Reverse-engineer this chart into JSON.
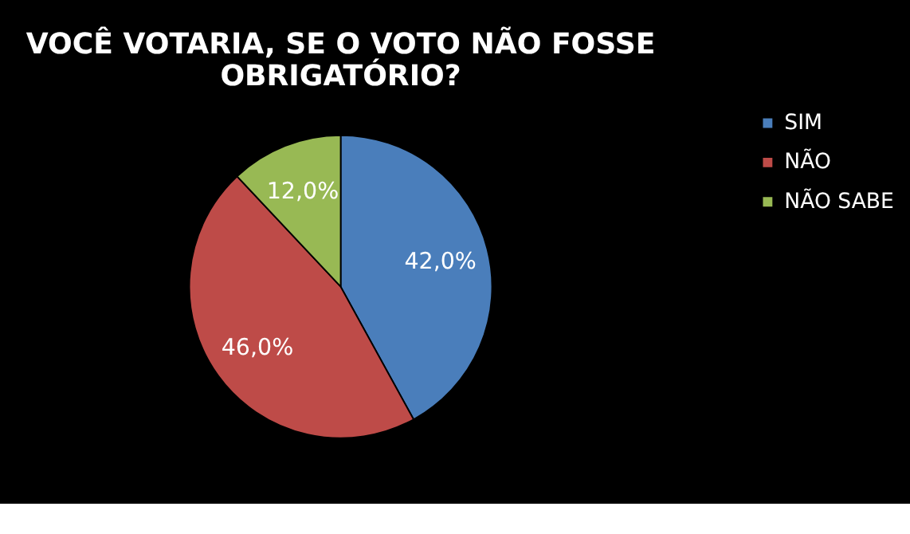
{
  "chart_data": {
    "type": "pie",
    "title": "VOCÊ VOTARIA, SE O VOTO NÃO FOSSE OBRIGATÓRIO?",
    "categories": [
      "SIM",
      "NÃO",
      "NÃO SABE"
    ],
    "values": [
      42,
      46,
      12
    ],
    "colors": [
      "#4a7ebb",
      "#be4b48",
      "#98b954"
    ],
    "value_labels": [
      "42,0%",
      "46,0%",
      "12,0%"
    ],
    "legend": "right"
  }
}
